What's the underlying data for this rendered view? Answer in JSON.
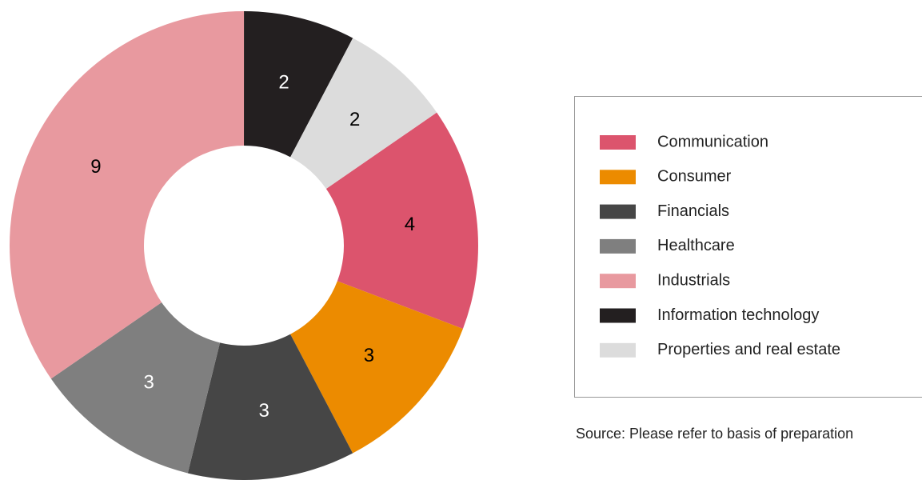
{
  "chart_data": {
    "type": "donut",
    "categories": [
      "Communication",
      "Consumer",
      "Financials",
      "Healthcare",
      "Industrials",
      "Information technology",
      "Properties and real estate"
    ],
    "values": [
      4,
      3,
      3,
      3,
      9,
      2,
      2
    ],
    "colors": [
      "#dc546d",
      "#ec8b00",
      "#464646",
      "#7f7f7f",
      "#e8999f",
      "#231f20",
      "#dcdcdc"
    ],
    "legend": "right",
    "source": "Source: Please refer to basis of preparation"
  }
}
